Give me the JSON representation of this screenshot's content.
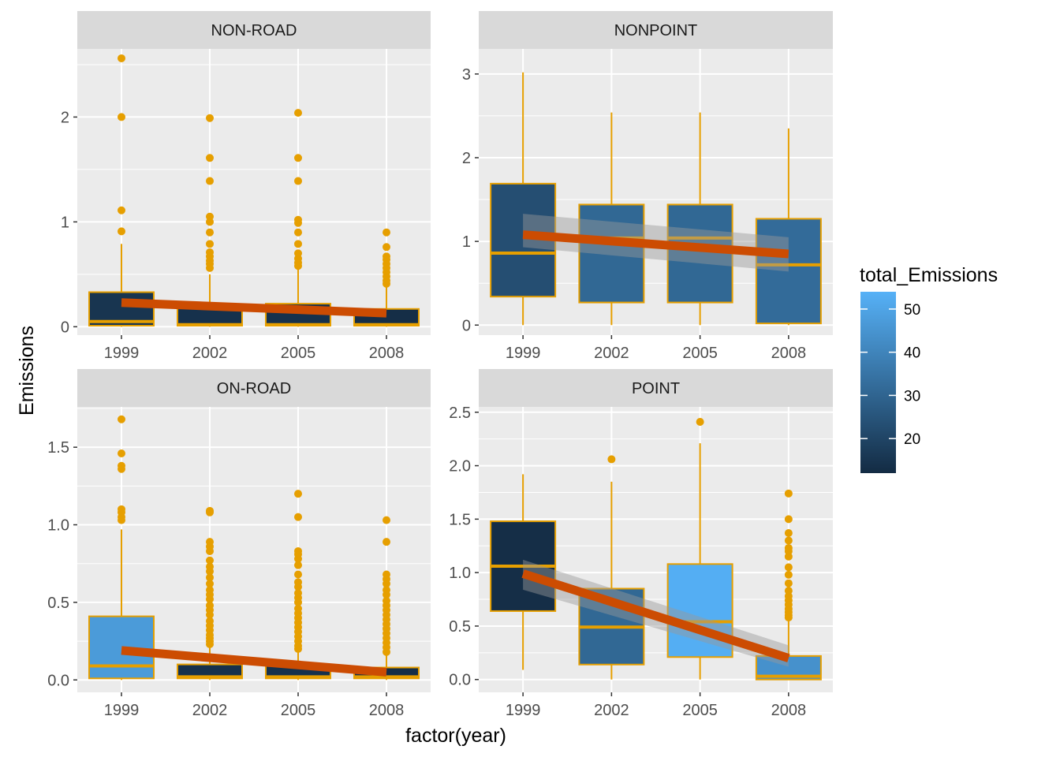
{
  "chart_data": {
    "type": "boxplot",
    "title": "",
    "xlabel": "factor(year)",
    "ylabel": "Emissions",
    "categories": [
      "1999",
      "2002",
      "2005",
      "2008"
    ],
    "colors": {
      "panel_bg": "#EBEBEB",
      "strip_bg": "#D9D9D9",
      "box_outline": "#E69F00",
      "points": "#E69F00",
      "trend_line": "#CC4C02",
      "ribbon": "#999999",
      "fill_low": "#132B43",
      "fill_high": "#56B1F7"
    },
    "legend": {
      "title": "total_Emissions",
      "position": "right",
      "min": 12,
      "max": 54,
      "ticks": [
        "20",
        "30",
        "40",
        "50"
      ]
    },
    "panels": [
      {
        "name": "NON-ROAD",
        "ylim": [
          -0.08,
          2.65
        ],
        "yticks": [
          "0",
          "1",
          "2"
        ],
        "trend": {
          "start": 0.23,
          "end": 0.13,
          "ribbon_start": [
            0.21,
            0.25
          ],
          "ribbon_end": [
            0.11,
            0.15
          ]
        },
        "boxes": [
          {
            "year": "1999",
            "total": 15,
            "q1": 0.01,
            "median": 0.05,
            "q3": 0.33,
            "whisker_low": 0,
            "whisker_high": 0.79,
            "outliers": [
              0.91,
              1.11,
              2.0,
              2.56
            ]
          },
          {
            "year": "2002",
            "total": 14,
            "q1": 0.01,
            "median": 0.02,
            "q3": 0.21,
            "whisker_low": 0,
            "whisker_high": 0.5,
            "outliers": [
              0.56,
              0.6,
              0.63,
              0.67,
              0.71,
              0.79,
              0.9,
              1.0,
              1.05,
              1.39,
              1.61,
              1.99
            ]
          },
          {
            "year": "2005",
            "total": 14,
            "q1": 0.01,
            "median": 0.02,
            "q3": 0.22,
            "whisker_low": 0,
            "whisker_high": 0.55,
            "outliers": [
              0.58,
              0.61,
              0.65,
              0.7,
              0.79,
              0.9,
              0.99,
              1.02,
              1.39,
              1.61,
              2.04
            ]
          },
          {
            "year": "2008",
            "total": 13,
            "q1": 0.01,
            "median": 0.02,
            "q3": 0.17,
            "whisker_low": 0,
            "whisker_high": 0.38,
            "outliers": [
              0.41,
              0.44,
              0.48,
              0.52,
              0.56,
              0.6,
              0.64,
              0.67,
              0.76,
              0.9
            ]
          }
        ]
      },
      {
        "name": "NONPOINT",
        "ylim": [
          -0.12,
          3.3
        ],
        "yticks": [
          "0",
          "1",
          "2",
          "3"
        ],
        "trend": {
          "start": 1.08,
          "end": 0.85,
          "ribbon_start": [
            0.93,
            1.33
          ],
          "ribbon_end": [
            0.64,
            1.05
          ]
        },
        "boxes": [
          {
            "year": "1999",
            "total": 23,
            "q1": 0.34,
            "median": 0.86,
            "q3": 1.69,
            "whisker_low": 0,
            "whisker_high": 3.02,
            "outliers": []
          },
          {
            "year": "2002",
            "total": 31,
            "q1": 0.27,
            "median": 1.04,
            "q3": 1.44,
            "whisker_low": 0,
            "whisker_high": 2.54,
            "outliers": []
          },
          {
            "year": "2005",
            "total": 31,
            "q1": 0.27,
            "median": 1.04,
            "q3": 1.44,
            "whisker_low": 0,
            "whisker_high": 2.54,
            "outliers": []
          },
          {
            "year": "2008",
            "total": 32,
            "q1": 0.02,
            "median": 0.72,
            "q3": 1.27,
            "whisker_low": 0,
            "whisker_high": 2.35,
            "outliers": []
          }
        ]
      },
      {
        "name": "ON-ROAD",
        "ylim": [
          -0.08,
          1.76
        ],
        "yticks": [
          "0.0",
          "0.5",
          "1.0",
          "1.5"
        ],
        "trend": {
          "start": 0.19,
          "end": 0.05,
          "ribbon_start": [
            0.17,
            0.21
          ],
          "ribbon_end": [
            0.03,
            0.07
          ]
        },
        "boxes": [
          {
            "year": "1999",
            "total": 47,
            "q1": 0.01,
            "median": 0.09,
            "q3": 0.41,
            "whisker_low": 0,
            "whisker_high": 0.97,
            "outliers": [
              1.03,
              1.05,
              1.08,
              1.1,
              1.36,
              1.38,
              1.46,
              1.68
            ]
          },
          {
            "year": "2002",
            "total": 14,
            "q1": 0.01,
            "median": 0.02,
            "q3": 0.1,
            "whisker_low": 0,
            "whisker_high": 0.22,
            "outliers": [
              0.23,
              0.25,
              0.27,
              0.29,
              0.32,
              0.35,
              0.38,
              0.42,
              0.45,
              0.48,
              0.52,
              0.55,
              0.58,
              0.62,
              0.66,
              0.7,
              0.73,
              0.77,
              0.83,
              0.86,
              0.89,
              1.08,
              1.09
            ]
          },
          {
            "year": "2005",
            "total": 14,
            "q1": 0.01,
            "median": 0.02,
            "q3": 0.09,
            "whisker_low": 0,
            "whisker_high": 0.18,
            "outliers": [
              0.2,
              0.22,
              0.25,
              0.28,
              0.31,
              0.34,
              0.37,
              0.4,
              0.43,
              0.46,
              0.5,
              0.53,
              0.56,
              0.6,
              0.63,
              0.68,
              0.74,
              0.78,
              0.81,
              0.83,
              1.05,
              1.2
            ]
          },
          {
            "year": "2008",
            "total": 13,
            "q1": 0.01,
            "median": 0.02,
            "q3": 0.08,
            "whisker_low": 0,
            "whisker_high": 0.16,
            "outliers": [
              0.18,
              0.21,
              0.24,
              0.27,
              0.3,
              0.33,
              0.36,
              0.39,
              0.42,
              0.45,
              0.48,
              0.51,
              0.55,
              0.58,
              0.62,
              0.65,
              0.68,
              0.89,
              1.03
            ]
          }
        ]
      },
      {
        "name": "POINT",
        "ylim": [
          -0.12,
          2.55
        ],
        "yticks": [
          "0.0",
          "0.5",
          "1.0",
          "1.5",
          "2.0",
          "2.5"
        ],
        "trend": {
          "start": 0.99,
          "end": 0.2,
          "ribbon_start": [
            0.84,
            1.12
          ],
          "ribbon_end": [
            0.12,
            0.32
          ]
        },
        "boxes": [
          {
            "year": "1999",
            "total": 13,
            "q1": 0.64,
            "median": 1.06,
            "q3": 1.48,
            "whisker_low": 0.09,
            "whisker_high": 1.92,
            "outliers": []
          },
          {
            "year": "2002",
            "total": 31,
            "q1": 0.14,
            "median": 0.49,
            "q3": 0.85,
            "whisker_low": 0,
            "whisker_high": 1.85,
            "outliers": [
              2.06
            ]
          },
          {
            "year": "2005",
            "total": 53,
            "q1": 0.21,
            "median": 0.54,
            "q3": 1.08,
            "whisker_low": 0,
            "whisker_high": 2.21,
            "outliers": [
              2.41
            ]
          },
          {
            "year": "2008",
            "total": 44,
            "q1": 0.0,
            "median": 0.03,
            "q3": 0.22,
            "whisker_low": 0,
            "whisker_high": 0.55,
            "outliers": [
              0.58,
              0.6,
              0.63,
              0.66,
              0.7,
              0.74,
              0.78,
              0.83,
              0.9,
              0.98,
              1.05,
              1.15,
              1.2,
              1.23,
              1.3,
              1.37,
              1.5,
              1.74
            ]
          }
        ]
      }
    ]
  }
}
